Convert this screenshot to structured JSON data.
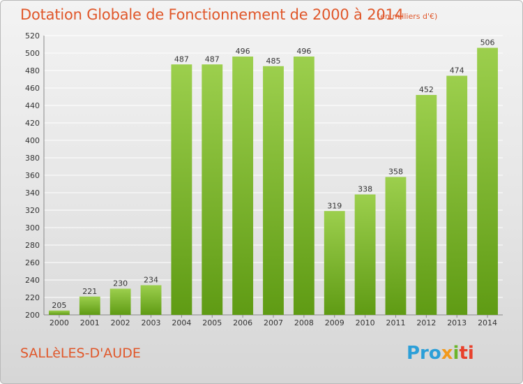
{
  "header": {
    "title": "Dotation Globale de Fonctionnement de 2000 à 2014",
    "subtitle": "(en milliers d'€)"
  },
  "footer": {
    "commune": "SALLèLES-D'AUDE",
    "logo": [
      "Pro",
      "x",
      "i",
      "ti"
    ],
    "logo_colors": [
      "#2c9fd8",
      "#f29a1d",
      "#6bb52b",
      "#e8412c"
    ]
  },
  "colors": {
    "bar_light": "#9ccf4d",
    "bar_dark": "#5f9b14",
    "text_accent": "#e0572a",
    "grid": "#ffffff"
  },
  "chart_data": {
    "type": "bar",
    "title": "Dotation Globale de Fonctionnement de 2000 à 2014",
    "subtitle": "(en milliers d'€)",
    "categories": [
      "2000",
      "2001",
      "2002",
      "2003",
      "2004",
      "2005",
      "2006",
      "2007",
      "2008",
      "2009",
      "2010",
      "2011",
      "2012",
      "2013",
      "2014"
    ],
    "values": [
      205,
      221,
      230,
      234,
      487,
      487,
      496,
      485,
      496,
      319,
      338,
      358,
      452,
      474,
      506
    ],
    "ylim": [
      200,
      520
    ],
    "yticks": [
      200,
      220,
      240,
      260,
      280,
      300,
      320,
      340,
      360,
      380,
      400,
      420,
      440,
      460,
      480,
      500,
      520
    ],
    "grid": true,
    "data_labels": true
  }
}
